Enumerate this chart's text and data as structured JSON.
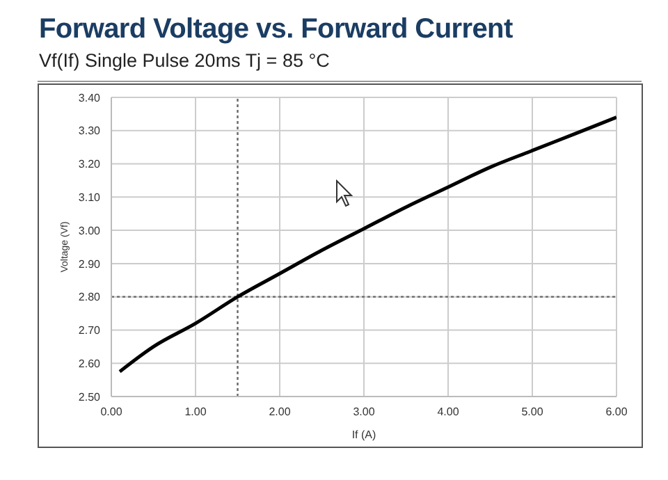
{
  "chart_data": {
    "type": "line",
    "title": "Forward Voltage vs. Forward Current",
    "subtitle": "Vf(If) Single Pulse 20ms Tj = 85 °C",
    "xlabel": "If (A)",
    "ylabel": "Voltage (Vf)",
    "x": [
      0.1,
      0.5,
      1.0,
      1.5,
      2.0,
      2.5,
      3.0,
      3.5,
      4.0,
      4.5,
      5.0,
      5.5,
      6.0
    ],
    "series": [
      {
        "color": "#000000",
        "values": [
          2.575,
          2.65,
          2.72,
          2.8,
          2.87,
          2.94,
          3.005,
          3.07,
          3.13,
          3.19,
          3.24,
          3.29,
          3.34
        ]
      }
    ],
    "xlim": [
      0,
      6
    ],
    "xticks": [
      {
        "value": 0,
        "label": "0.00"
      },
      {
        "value": 1,
        "label": "1.00"
      },
      {
        "value": 2,
        "label": "2.00"
      },
      {
        "value": 3,
        "label": "3.00"
      },
      {
        "value": 4,
        "label": "4.00"
      },
      {
        "value": 5,
        "label": "5.00"
      },
      {
        "value": 6,
        "label": "6.00"
      }
    ],
    "ylim": [
      2.5,
      3.4
    ],
    "yticks": [
      {
        "value": 2.5,
        "label": "2.50"
      },
      {
        "value": 2.6,
        "label": "2.60"
      },
      {
        "value": 2.7,
        "label": "2.70"
      },
      {
        "value": 2.8,
        "label": "2.80"
      },
      {
        "value": 2.9,
        "label": "2.90"
      },
      {
        "value": 3.0,
        "label": "3.00"
      },
      {
        "value": 3.1,
        "label": "3.10"
      },
      {
        "value": 3.2,
        "label": "3.20"
      },
      {
        "value": 3.3,
        "label": "3.30"
      },
      {
        "value": 3.4,
        "label": "3.40"
      }
    ],
    "ref_lines": [
      {
        "axis": "x",
        "value": 1.5,
        "color": "#666666",
        "line_style": "dotted"
      },
      {
        "axis": "y",
        "value": 2.8,
        "color": "#666666",
        "line_style": "dotted"
      }
    ],
    "grid": true,
    "marker": "none",
    "line_style": "solid"
  }
}
